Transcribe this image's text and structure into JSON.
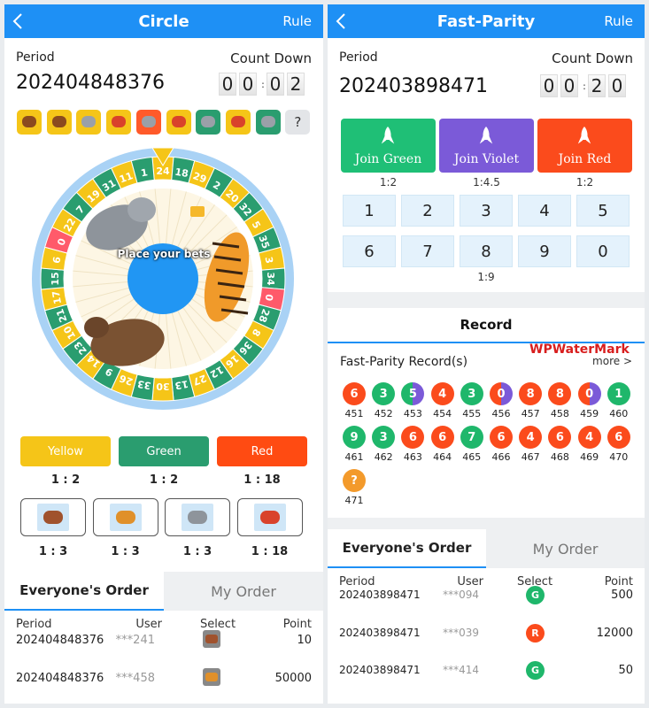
{
  "left": {
    "header": {
      "title": "Circle",
      "rule": "Rule"
    },
    "period_label": "Period",
    "period": "202404848376",
    "countdown_label": "Count Down",
    "countdown": [
      "0",
      "0",
      ":",
      "0",
      "2"
    ],
    "history_unknown": "?",
    "wheel": {
      "numbers": [
        24,
        18,
        29,
        2,
        20,
        32,
        5,
        35,
        3,
        34,
        0,
        28,
        8,
        36,
        16,
        12,
        27,
        13,
        30,
        33,
        26,
        9,
        14,
        23,
        10,
        21,
        17,
        15,
        6,
        0,
        22,
        7,
        19,
        31,
        11,
        1
      ],
      "colors": [
        "#f5c518",
        "#2a9d6f"
      ],
      "zero_color": "#ff5a6a",
      "prompt": "Place your bets"
    },
    "color_bets": [
      {
        "label": "Yellow",
        "odds": "1 : 2",
        "color": "#f5c518"
      },
      {
        "label": "Green",
        "odds": "1 : 2",
        "color": "#2a9d6f"
      },
      {
        "label": "Red",
        "odds": "1 : 18",
        "color": "#ff4b12"
      }
    ],
    "animal_odds": [
      "1 : 3",
      "1 : 3",
      "1 : 3",
      "1 : 18"
    ],
    "tabs": [
      "Everyone's Order",
      "My Order"
    ],
    "table": {
      "columns": [
        "Period",
        "User",
        "Select",
        "Point"
      ],
      "rows": [
        {
          "period": "202404848376",
          "user": "***241",
          "point": 10
        },
        {
          "period": "202404848376",
          "user": "***458",
          "point": 50000
        }
      ]
    }
  },
  "right": {
    "header": {
      "title": "Fast-Parity",
      "rule": "Rule"
    },
    "period_label": "Period",
    "period": "202403898471",
    "countdown_label": "Count Down",
    "countdown": [
      "0",
      "0",
      ":",
      "2",
      "0"
    ],
    "joins": [
      {
        "label": "Join Green",
        "odds": "1:2",
        "color": "#1fbf76"
      },
      {
        "label": "Join Violet",
        "odds": "1:4.5",
        "color": "#7b5ad8"
      },
      {
        "label": "Join Red",
        "odds": "1:2",
        "color": "#fb4b1c"
      }
    ],
    "numbers": [
      "1",
      "2",
      "3",
      "4",
      "5",
      "6",
      "7",
      "8",
      "9",
      "0"
    ],
    "number_odds": "1:9",
    "record_title": "Record",
    "record_subtitle": "Fast-Parity Record(s)",
    "watermark": "WPWaterMark",
    "more": "more >",
    "records": [
      {
        "result": "6",
        "id": "451",
        "colors": [
          "#fb4b1c"
        ]
      },
      {
        "result": "3",
        "id": "452",
        "colors": [
          "#1fb76b"
        ]
      },
      {
        "result": "5",
        "id": "453",
        "colors": [
          "#1fb76b",
          "#7b5ad8"
        ]
      },
      {
        "result": "4",
        "id": "454",
        "colors": [
          "#fb4b1c"
        ]
      },
      {
        "result": "3",
        "id": "455",
        "colors": [
          "#1fb76b"
        ]
      },
      {
        "result": "0",
        "id": "456",
        "colors": [
          "#fb4b1c",
          "#7b5ad8"
        ]
      },
      {
        "result": "8",
        "id": "457",
        "colors": [
          "#fb4b1c"
        ]
      },
      {
        "result": "8",
        "id": "458",
        "colors": [
          "#fb4b1c"
        ]
      },
      {
        "result": "0",
        "id": "459",
        "colors": [
          "#fb4b1c",
          "#7b5ad8"
        ]
      },
      {
        "result": "1",
        "id": "460",
        "colors": [
          "#1fb76b"
        ]
      },
      {
        "result": "9",
        "id": "461",
        "colors": [
          "#1fb76b"
        ]
      },
      {
        "result": "3",
        "id": "462",
        "colors": [
          "#1fb76b"
        ]
      },
      {
        "result": "6",
        "id": "463",
        "colors": [
          "#fb4b1c"
        ]
      },
      {
        "result": "6",
        "id": "464",
        "colors": [
          "#fb4b1c"
        ]
      },
      {
        "result": "7",
        "id": "465",
        "colors": [
          "#1fb76b"
        ]
      },
      {
        "result": "6",
        "id": "466",
        "colors": [
          "#fb4b1c"
        ]
      },
      {
        "result": "4",
        "id": "467",
        "colors": [
          "#fb4b1c"
        ]
      },
      {
        "result": "6",
        "id": "468",
        "colors": [
          "#fb4b1c"
        ]
      },
      {
        "result": "4",
        "id": "469",
        "colors": [
          "#fb4b1c"
        ]
      },
      {
        "result": "6",
        "id": "470",
        "colors": [
          "#fb4b1c"
        ]
      },
      {
        "result": "?",
        "id": "471",
        "colors": [
          "#f39a2b"
        ]
      }
    ],
    "tabs": [
      "Everyone's Order",
      "My Order"
    ],
    "table": {
      "columns": [
        "Period",
        "User",
        "Select",
        "Point"
      ],
      "rows": [
        {
          "period": "202403898471",
          "user": "***094",
          "select": "G",
          "select_color": "#1fb76b",
          "point": 500
        },
        {
          "period": "202403898471",
          "user": "***039",
          "select": "R",
          "select_color": "#fb4b1c",
          "point": 12000
        },
        {
          "period": "202403898471",
          "user": "***414",
          "select": "G",
          "select_color": "#1fb76b",
          "point": 50
        }
      ]
    }
  }
}
